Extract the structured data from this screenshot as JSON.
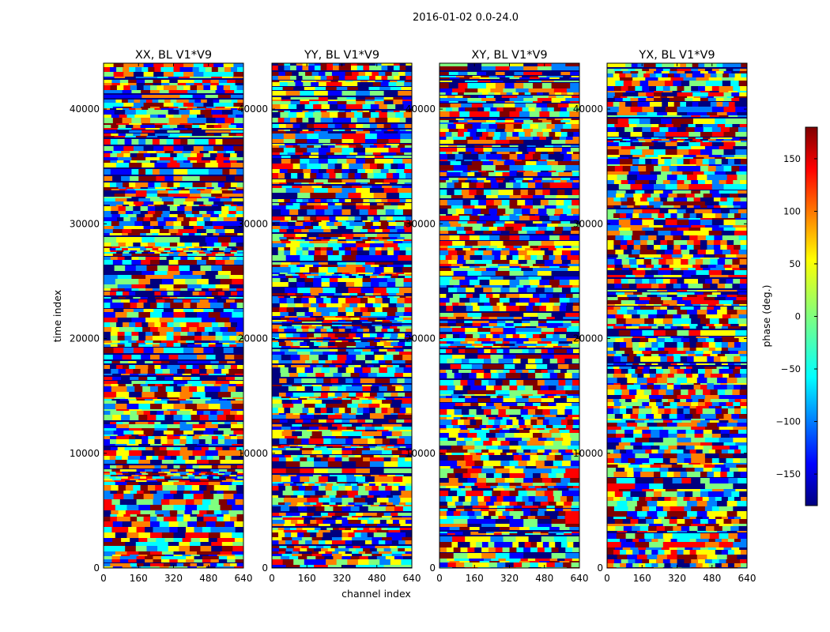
{
  "suptitle": "2016-01-02 0.0-24.0",
  "ylabel": "time index",
  "xlabel": "channel index",
  "chart_data": {
    "type": "heatmap",
    "title": "2016-01-02 0.0-24.0",
    "xlabel": "channel index",
    "ylabel": "time index",
    "xlim": [
      0,
      640
    ],
    "ylim": [
      0,
      44000
    ],
    "x_ticks": [
      0,
      160,
      320,
      480,
      640
    ],
    "x_tick_labels": [
      "0",
      "160",
      "320",
      "480",
      "640"
    ],
    "y_ticks": [
      0,
      10000,
      20000,
      30000,
      40000
    ],
    "y_tick_labels": [
      "0",
      "10000",
      "20000",
      "30000",
      "40000"
    ],
    "panels": [
      {
        "title": "XX, BL V1*V9",
        "polarization": "XX",
        "baseline": "V1*V9"
      },
      {
        "title": "YY, BL V1*V9",
        "polarization": "YY",
        "baseline": "V1*V9"
      },
      {
        "title": "XY, BL V1*V9",
        "polarization": "XY",
        "baseline": "V1*V9"
      },
      {
        "title": "YX, BL V1*V9",
        "polarization": "YX",
        "baseline": "V1*V9"
      }
    ],
    "colorbar": {
      "label": "phase (deg.)",
      "range": [
        -180,
        180
      ],
      "ticks": [
        150,
        100,
        50,
        0,
        -50,
        -100,
        -150
      ],
      "tick_labels": [
        "150",
        "100",
        "50",
        "0",
        "− 50",
        "−100",
        "−150"
      ],
      "colormap": "jet"
    }
  },
  "colors": {
    "jet": [
      "#00007f",
      "#0000ff",
      "#007fff",
      "#00ffff",
      "#7fff7f",
      "#ffff00",
      "#ff7f00",
      "#ff0000",
      "#7f0000"
    ]
  }
}
